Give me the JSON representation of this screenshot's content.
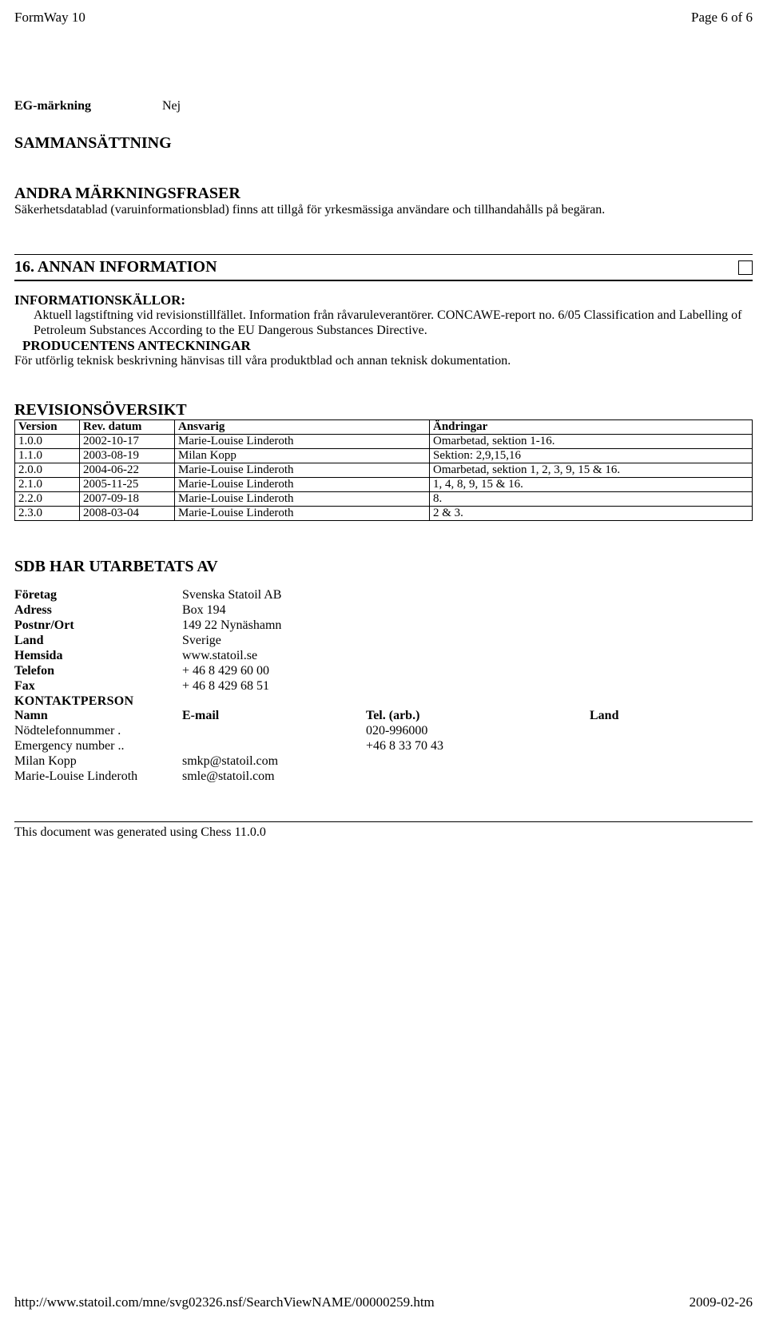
{
  "header": {
    "left": "FormWay 10",
    "right": "Page 6 of 6"
  },
  "eg": {
    "label": "EG-märkning",
    "value": "Nej"
  },
  "sammansattning": {
    "title": "SAMMANSÄTTNING"
  },
  "andra": {
    "title": "ANDRA MÄRKNINGSFRASER",
    "text": "Säkerhetsdatablad (varuinformationsblad) finns att tillgå för yrkesmässiga användare och tillhandahålls på begäran."
  },
  "sec16": {
    "title": "16. ANNAN INFORMATION",
    "infokallor_title": "INFORMATIONSKÄLLOR:",
    "infokallor_text": "Aktuell lagstiftning vid revisionstillfället. Information från råvaruleverantörer. CONCAWE-report no. 6/05 Classification and Labelling of Petroleum Substances According to the EU Dangerous Substances Directive.",
    "prod_title": "PRODUCENTENS ANTECKNINGAR",
    "prod_text": "För utförlig teknisk beskrivning hänvisas till våra produktblad och annan teknisk dokumentation."
  },
  "revision": {
    "title": "REVISIONSÖVERSIKT",
    "columns": [
      "Version",
      "Rev. datum",
      "Ansvarig",
      "Ändringar"
    ],
    "rows": [
      [
        "1.0.0",
        "2002-10-17",
        "Marie-Louise Linderoth",
        "Omarbetad, sektion 1-16."
      ],
      [
        "1.1.0",
        "2003-08-19",
        "Milan Kopp",
        "Sektion: 2,9,15,16"
      ],
      [
        "2.0.0",
        "2004-06-22",
        "Marie-Louise Linderoth",
        "Omarbetad, sektion 1, 2, 3, 9, 15 & 16."
      ],
      [
        "2.1.0",
        "2005-11-25",
        "Marie-Louise Linderoth",
        "1, 4, 8, 9, 15 & 16."
      ],
      [
        "2.2.0",
        "2007-09-18",
        "Marie-Louise Linderoth",
        "8."
      ],
      [
        "2.3.0",
        "2008-03-04",
        "Marie-Louise Linderoth",
        "2 & 3."
      ]
    ]
  },
  "sdb": {
    "title": "SDB HAR UTARBETATS AV",
    "rows": [
      {
        "label": "Företag",
        "value": "Svenska Statoil AB"
      },
      {
        "label": "Adress",
        "value": "Box 194"
      },
      {
        "label": "Postnr/Ort",
        "value": "149 22 Nynäshamn"
      },
      {
        "label": "Land",
        "value": "Sverige"
      },
      {
        "label": "Hemsida",
        "value": "www.statoil.se"
      },
      {
        "label": "Telefon",
        "value": "+ 46 8 429 60 00"
      },
      {
        "label": "Fax",
        "value": "+ 46 8 429 68 51"
      }
    ],
    "kontakt_title": "KONTAKTPERSON",
    "kontakt_columns": [
      "Namn",
      "E-mail",
      "Tel. (arb.)",
      "Land"
    ],
    "kontakt_rows": [
      {
        "namn": "Nödtelefonnummer .",
        "email": "",
        "tel": "020-996000",
        "land": ""
      },
      {
        "namn": "Emergency number ..",
        "email": "",
        "tel": "+46 8 33 70 43",
        "land": ""
      },
      {
        "namn": "Milan Kopp",
        "email": "smkp@statoil.com",
        "tel": "",
        "land": ""
      },
      {
        "namn": "Marie-Louise Linderoth",
        "email": "smle@statoil.com",
        "tel": "",
        "land": ""
      }
    ]
  },
  "generated": "This document was generated using Chess 11.0.0",
  "footer": {
    "url": "http://www.statoil.com/mne/svg02326.nsf/SearchViewNAME/00000259.htm",
    "date": "2009-02-26"
  }
}
